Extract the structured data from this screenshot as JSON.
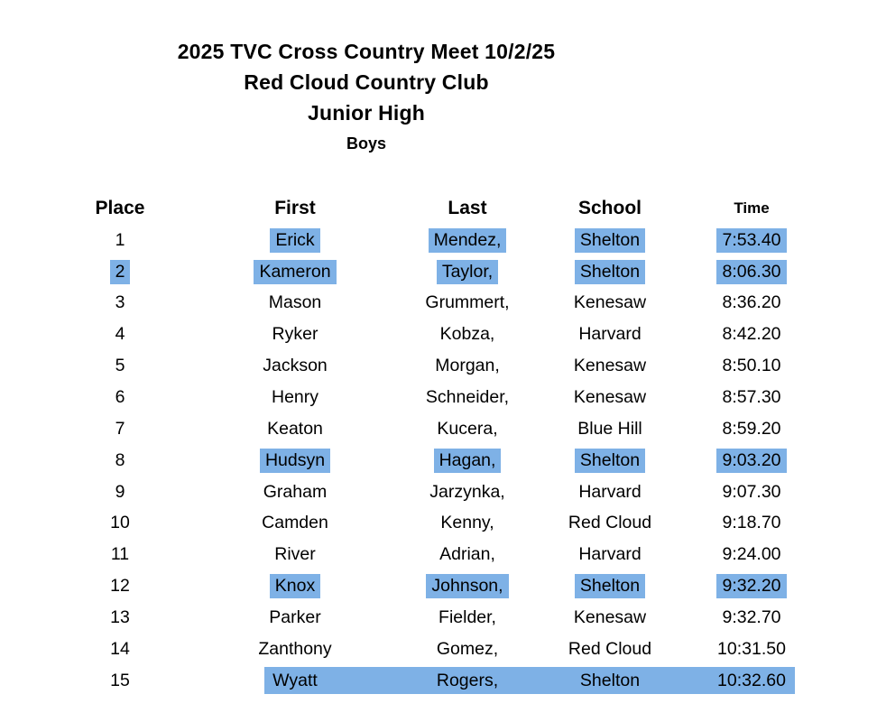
{
  "header": {
    "line1": "2025 TVC Cross Country Meet 10/2/25",
    "line2": "Red Cloud Country Club",
    "line3": "Junior High",
    "line4": "Boys"
  },
  "table": {
    "headers": [
      "Place",
      "First",
      "Last",
      "School",
      "Time"
    ],
    "rows": [
      {
        "place": "1",
        "first": "Erick",
        "last": "Mendez,",
        "school": "Shelton",
        "time": "7:53.40",
        "highlight": [
          "first",
          "last",
          "school",
          "time"
        ],
        "band": false
      },
      {
        "place": "2",
        "first": "Kameron",
        "last": "Taylor,",
        "school": "Shelton",
        "time": "8:06.30",
        "highlight": [
          "place",
          "first",
          "last",
          "school",
          "time"
        ],
        "band": false
      },
      {
        "place": "3",
        "first": "Mason",
        "last": "Grummert,",
        "school": "Kenesaw",
        "time": "8:36.20",
        "highlight": [],
        "band": false
      },
      {
        "place": "4",
        "first": "Ryker",
        "last": "Kobza,",
        "school": "Harvard",
        "time": "8:42.20",
        "highlight": [],
        "band": false
      },
      {
        "place": "5",
        "first": "Jackson",
        "last": "Morgan,",
        "school": "Kenesaw",
        "time": "8:50.10",
        "highlight": [],
        "band": false
      },
      {
        "place": "6",
        "first": "Henry",
        "last": "Schneider,",
        "school": "Kenesaw",
        "time": "8:57.30",
        "highlight": [],
        "band": false
      },
      {
        "place": "7",
        "first": "Keaton",
        "last": "Kucera,",
        "school": "Blue Hill",
        "time": "8:59.20",
        "highlight": [],
        "band": false
      },
      {
        "place": "8",
        "first": "Hudsyn",
        "last": "Hagan,",
        "school": "Shelton",
        "time": "9:03.20",
        "highlight": [
          "first",
          "last",
          "school",
          "time"
        ],
        "band": false
      },
      {
        "place": "9",
        "first": "Graham",
        "last": "Jarzynka,",
        "school": "Harvard",
        "time": "9:07.30",
        "highlight": [],
        "band": false
      },
      {
        "place": "10",
        "first": "Camden",
        "last": "Kenny,",
        "school": "Red Cloud",
        "time": "9:18.70",
        "highlight": [],
        "band": false
      },
      {
        "place": "11",
        "first": "River",
        "last": "Adrian,",
        "school": "Harvard",
        "time": "9:24.00",
        "highlight": [],
        "band": false
      },
      {
        "place": "12",
        "first": "Knox",
        "last": "Johnson,",
        "school": "Shelton",
        "time": "9:32.20",
        "highlight": [
          "first",
          "last",
          "school",
          "time"
        ],
        "band": false
      },
      {
        "place": "13",
        "first": "Parker",
        "last": "Fielder,",
        "school": "Kenesaw",
        "time": "9:32.70",
        "highlight": [],
        "band": false
      },
      {
        "place": "14",
        "first": "Zanthony",
        "last": "Gomez,",
        "school": "Red Cloud",
        "time": "10:31.50",
        "highlight": [],
        "band": false
      },
      {
        "place": "15",
        "first": "Wyatt",
        "last": "Rogers,",
        "school": "Shelton",
        "time": "10:32.60",
        "highlight": [],
        "band": true
      }
    ]
  },
  "colors": {
    "highlight_blue": "#7EB1E6",
    "text": "#000000",
    "background": "#FFFFFF"
  }
}
